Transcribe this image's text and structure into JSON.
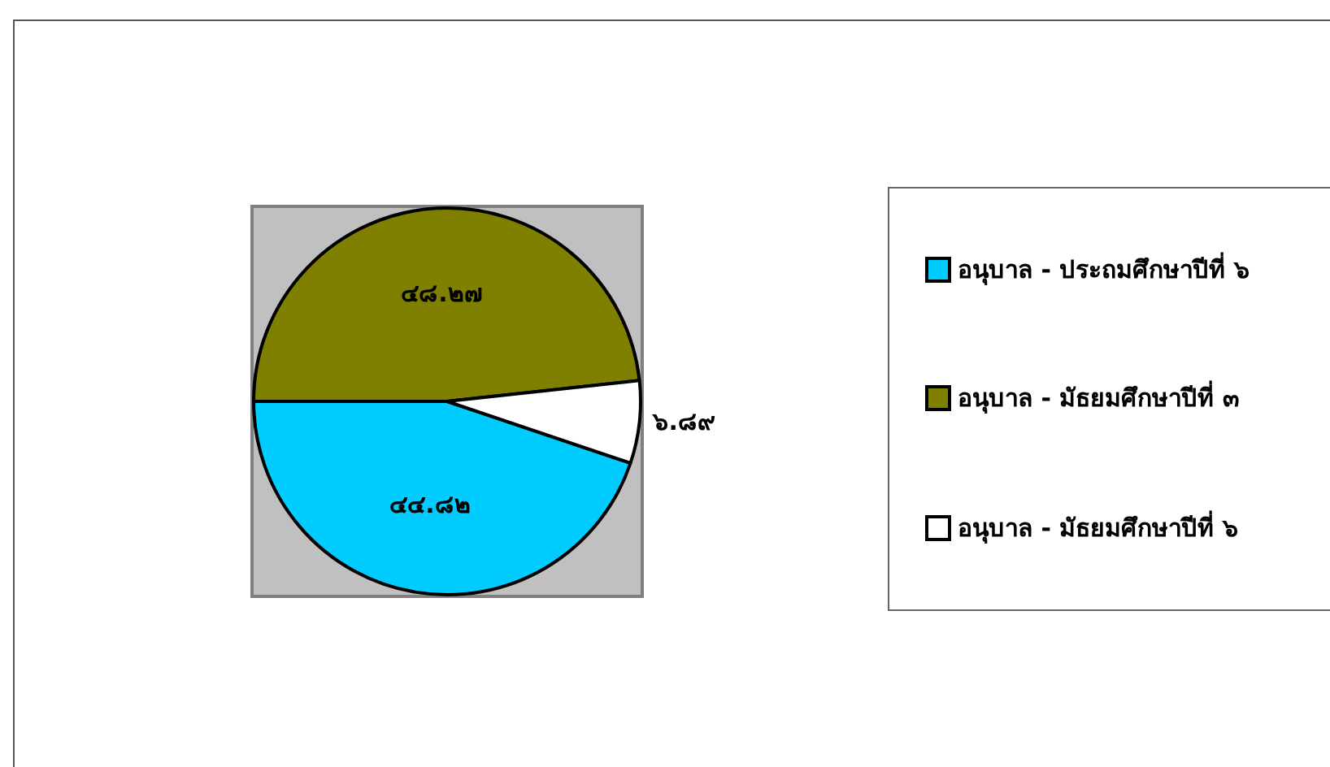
{
  "chart_data": {
    "type": "pie",
    "categories": [
      "อนุบาล - ประถมศึกษาปีที่ ๖",
      "อนุบาล - มัธยมศึกษาปีที่ ๓",
      "อนุบาล - มัธยมศึกษาปีที่ ๖"
    ],
    "values": [
      44.82,
      48.27,
      6.89
    ],
    "value_labels": [
      "๔๔.๘๒",
      "๔๘.๒๗",
      "๖.๘๙"
    ],
    "colors": [
      "#00ccff",
      "#808000",
      "#ffffff"
    ],
    "legend": "right"
  }
}
